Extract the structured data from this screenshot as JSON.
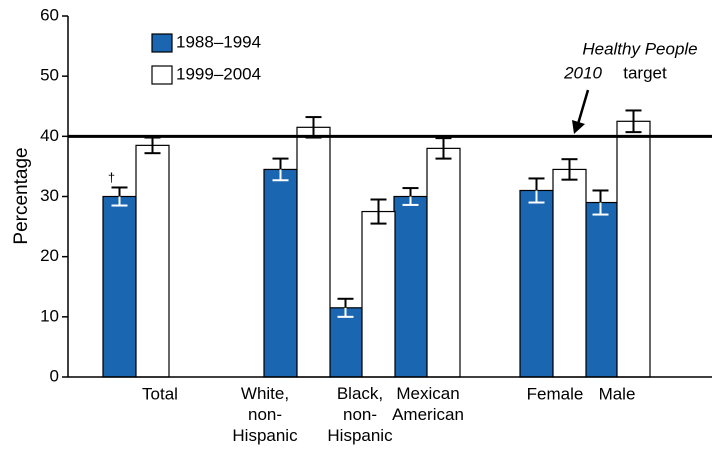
{
  "chart_data": {
    "type": "bar",
    "categories": [
      "Total",
      "White,\nnon-\nHispanic",
      "Black,\nnon-\nHispanic",
      "Mexican\nAmerican",
      "Female",
      "Male"
    ],
    "series": [
      {
        "name": "1988–1994",
        "color": "#1a66b0",
        "values": [
          30,
          34.5,
          11.5,
          30,
          31,
          29
        ],
        "errors": [
          1.5,
          1.8,
          1.5,
          1.4,
          2,
          2
        ]
      },
      {
        "name": "1999–2004",
        "color": "#ffffff",
        "values": [
          38.5,
          41.5,
          27.5,
          38,
          34.5,
          42.5
        ],
        "errors": [
          1.3,
          1.7,
          2,
          1.7,
          1.7,
          1.8
        ]
      }
    ],
    "ylabel": "Percentage",
    "ylim": [
      0,
      60
    ],
    "yticks": [
      0,
      10,
      20,
      30,
      40,
      50,
      60
    ],
    "target": 40,
    "annotation": [
      "Healthy People",
      "2010",
      "target"
    ],
    "footnote_marker": "†"
  }
}
